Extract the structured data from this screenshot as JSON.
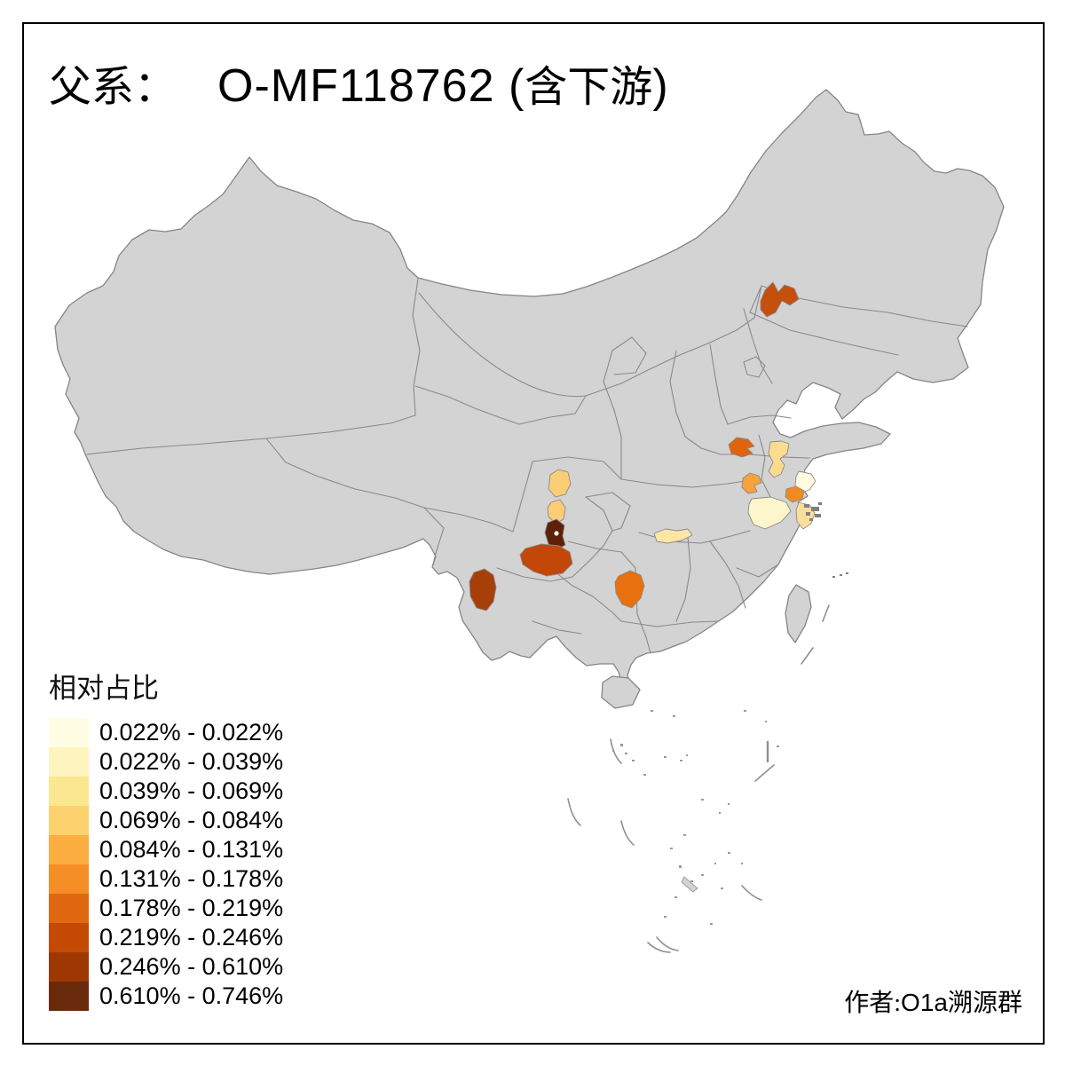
{
  "title": {
    "full": "父系： O-MF118762 (含下游)",
    "parts": [
      {
        "text": "父系：",
        "font": "cjk"
      },
      {
        "text": "O-MF118762 (",
        "font": "latin"
      },
      {
        "text": "含下游",
        "font": "cjk"
      },
      {
        "text": ")",
        "font": "latin"
      }
    ]
  },
  "author": {
    "full": "作者:O1a溯源群",
    "parts": [
      {
        "text": "作者:",
        "font": "cjk"
      },
      {
        "text": "O1a",
        "font": "latin"
      },
      {
        "text": "溯源群",
        "font": "cjk"
      }
    ]
  },
  "legend": {
    "title": "相对占比",
    "entries": [
      {
        "label": "0.022% - 0.022%",
        "color": "#FFFEE5"
      },
      {
        "label": "0.022% - 0.039%",
        "color": "#FEF4BE"
      },
      {
        "label": "0.039% - 0.069%",
        "color": "#FCE791"
      },
      {
        "label": "0.069% - 0.084%",
        "color": "#FDD26E"
      },
      {
        "label": "0.084% - 0.131%",
        "color": "#FCAE41"
      },
      {
        "label": "0.131% - 0.178%",
        "color": "#F58E26"
      },
      {
        "label": "0.178% - 0.219%",
        "color": "#E06810"
      },
      {
        "label": "0.219% - 0.246%",
        "color": "#C44A04"
      },
      {
        "label": "0.246% - 0.610%",
        "color": "#9D3803"
      },
      {
        "label": "0.610% - 0.746%",
        "color": "#6A2A0C"
      }
    ]
  },
  "map": {
    "base_fill": "#D3D3D3",
    "border_color": "#858585",
    "island_speck_color": "#7F7F7F",
    "background": "#FFFFFF",
    "regions": [
      {
        "id": "northeast-liaoning",
        "color": "#C54F0C",
        "class": "0.219% - 0.246%"
      },
      {
        "id": "anhui-north",
        "color": "#E0640E",
        "class": "0.178% - 0.219%"
      },
      {
        "id": "anhui-central",
        "color": "#F8A239",
        "class": "0.084% - 0.131%"
      },
      {
        "id": "jiangsu-central",
        "color": "#FBDC8E",
        "class": "0.039% - 0.069%"
      },
      {
        "id": "jiangsu-coast",
        "color": "#FEFBE1",
        "class": "0.022% - 0.022%"
      },
      {
        "id": "suzhou-area",
        "color": "#F08A21",
        "class": "0.131% - 0.178%"
      },
      {
        "id": "south-jiangsu-pale",
        "color": "#FDF5CB",
        "class": "0.022% - 0.039%"
      },
      {
        "id": "zhejiang-coast",
        "color": "#FADF9C",
        "class": "0.039% - 0.069%"
      },
      {
        "id": "hunan-north-strip",
        "color": "#FBE6A6",
        "class": "0.039% - 0.069%"
      },
      {
        "id": "sichuan-north-upper",
        "color": "#FCCD74",
        "class": "0.069% - 0.084%"
      },
      {
        "id": "sichuan-north-lower",
        "color": "#FCCD74",
        "class": "0.069% - 0.084%"
      },
      {
        "id": "chengdu-area",
        "color": "#5E2007",
        "class": "0.610% - 0.746%"
      },
      {
        "id": "sichuan-south",
        "color": "#C24708",
        "class": "0.219% - 0.246%"
      },
      {
        "id": "yunnan-central",
        "color": "#A83E08",
        "class": "0.246% - 0.610%"
      },
      {
        "id": "hunan-west",
        "color": "#E8700F",
        "class": "0.178% - 0.219%"
      }
    ]
  },
  "chart_data": {
    "type": "choropleth",
    "title": "父系： O-MF118762 (含下游)",
    "legend_title": "相对占比",
    "unit": "%",
    "breaks": [
      0.022,
      0.022,
      0.039,
      0.069,
      0.084,
      0.131,
      0.178,
      0.219,
      0.246,
      0.61,
      0.746
    ],
    "palette": [
      "#FFFEE5",
      "#FEF4BE",
      "#FCE791",
      "#FDD26E",
      "#FCAE41",
      "#F58E26",
      "#E06810",
      "#C44A04",
      "#9D3803",
      "#6A2A0C"
    ],
    "series": [
      {
        "name": "northeast-liaoning",
        "bin": "0.219% - 0.246%"
      },
      {
        "name": "anhui-north",
        "bin": "0.178% - 0.219%"
      },
      {
        "name": "anhui-central",
        "bin": "0.084% - 0.131%"
      },
      {
        "name": "jiangsu-central",
        "bin": "0.039% - 0.069%"
      },
      {
        "name": "jiangsu-coast",
        "bin": "0.022% - 0.022%"
      },
      {
        "name": "suzhou-area",
        "bin": "0.131% - 0.178%"
      },
      {
        "name": "south-jiangsu-pale",
        "bin": "0.022% - 0.039%"
      },
      {
        "name": "zhejiang-coast",
        "bin": "0.039% - 0.069%"
      },
      {
        "name": "hunan-north-strip",
        "bin": "0.039% - 0.069%"
      },
      {
        "name": "sichuan-north-upper",
        "bin": "0.069% - 0.084%"
      },
      {
        "name": "sichuan-north-lower",
        "bin": "0.069% - 0.084%"
      },
      {
        "name": "chengdu-area",
        "bin": "0.610% - 0.746%"
      },
      {
        "name": "sichuan-south",
        "bin": "0.219% - 0.246%"
      },
      {
        "name": "yunnan-central",
        "bin": "0.246% - 0.610%"
      },
      {
        "name": "hunan-west",
        "bin": "0.178% - 0.219%"
      }
    ],
    "legend_position": "bottom-left"
  }
}
